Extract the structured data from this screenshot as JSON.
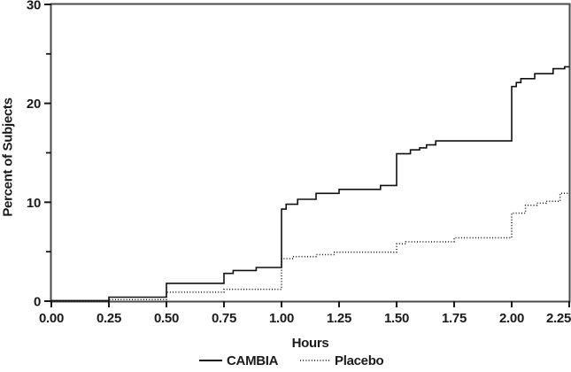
{
  "chart_data": {
    "type": "line",
    "subtype": "step",
    "title": "",
    "xlabel": "Hours",
    "ylabel": "Percent of Subjects",
    "xlim": [
      0,
      2.25
    ],
    "ylim": [
      0,
      30
    ],
    "grid": false,
    "legend_position": "bottom-center",
    "x_ticks": [
      {
        "value": 0.0,
        "label": "0.00"
      },
      {
        "value": 0.25,
        "label": "0.25"
      },
      {
        "value": 0.5,
        "label": "0.50"
      },
      {
        "value": 0.75,
        "label": "0.75"
      },
      {
        "value": 1.0,
        "label": "1.00"
      },
      {
        "value": 1.25,
        "label": "1.25"
      },
      {
        "value": 1.5,
        "label": "1.50"
      },
      {
        "value": 1.75,
        "label": "1.75"
      },
      {
        "value": 2.0,
        "label": "2.00"
      },
      {
        "value": 2.25,
        "label": "2.25"
      }
    ],
    "y_major_ticks": [
      {
        "value": 0,
        "label": "0"
      },
      {
        "value": 10,
        "label": "10"
      },
      {
        "value": 20,
        "label": "20"
      },
      {
        "value": 30,
        "label": "30"
      }
    ],
    "y_minor_ticks": [
      5,
      15,
      25
    ],
    "series": [
      {
        "name": "CAMBIA",
        "line_style": "solid",
        "color": "#111111",
        "points": [
          [
            0.0,
            0.05
          ],
          [
            0.25,
            0.4
          ],
          [
            0.5,
            1.8
          ],
          [
            0.75,
            2.8
          ],
          [
            0.79,
            3.1
          ],
          [
            0.89,
            3.4
          ],
          [
            1.0,
            9.3
          ],
          [
            1.02,
            9.8
          ],
          [
            1.07,
            10.3
          ],
          [
            1.15,
            10.9
          ],
          [
            1.25,
            11.3
          ],
          [
            1.43,
            11.7
          ],
          [
            1.5,
            14.9
          ],
          [
            1.56,
            15.3
          ],
          [
            1.6,
            15.5
          ],
          [
            1.63,
            15.8
          ],
          [
            1.67,
            16.2
          ],
          [
            2.0,
            21.7
          ],
          [
            2.02,
            22.1
          ],
          [
            2.04,
            22.5
          ],
          [
            2.1,
            23.0
          ],
          [
            2.18,
            23.5
          ],
          [
            2.23,
            23.7
          ]
        ]
      },
      {
        "name": "Placebo",
        "line_style": "dotted",
        "color": "#111111",
        "points": [
          [
            0.0,
            0.0
          ],
          [
            0.25,
            0.15
          ],
          [
            0.5,
            0.9
          ],
          [
            0.75,
            1.2
          ],
          [
            1.0,
            4.3
          ],
          [
            1.05,
            4.5
          ],
          [
            1.15,
            4.7
          ],
          [
            1.23,
            4.95
          ],
          [
            1.5,
            5.8
          ],
          [
            1.54,
            6.0
          ],
          [
            1.75,
            6.4
          ],
          [
            2.0,
            8.9
          ],
          [
            2.06,
            9.7
          ],
          [
            2.11,
            9.9
          ],
          [
            2.15,
            10.1
          ],
          [
            2.21,
            10.9
          ]
        ]
      }
    ],
    "frame_color": "#4a4a4a",
    "tick_color": "#1a1a1a"
  }
}
